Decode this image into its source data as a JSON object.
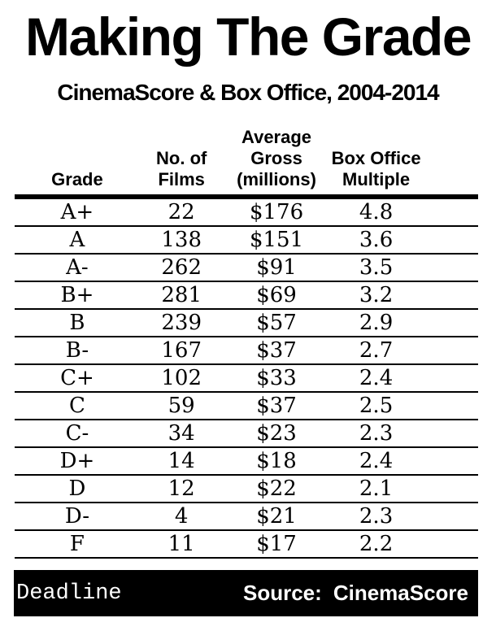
{
  "title": "Making The Grade",
  "subtitle": "CinemaScore & Box Office, 2004-2014",
  "table": {
    "header_lines": [
      [
        "Grade"
      ],
      [
        "No. of",
        "Films"
      ],
      [
        "Average",
        "Gross",
        "(millions)"
      ],
      [
        "Box Office",
        "Multiple"
      ]
    ],
    "rows": [
      [
        "A+",
        "22",
        "$176",
        "4.8"
      ],
      [
        "A",
        "138",
        "$151",
        "3.6"
      ],
      [
        "A-",
        "262",
        "$91",
        "3.5"
      ],
      [
        "B+",
        "281",
        "$69",
        "3.2"
      ],
      [
        "B",
        "239",
        "$57",
        "2.9"
      ],
      [
        "B-",
        "167",
        "$37",
        "2.7"
      ],
      [
        "C+",
        "102",
        "$33",
        "2.4"
      ],
      [
        "C",
        "59",
        "$37",
        "2.5"
      ],
      [
        "C-",
        "34",
        "$23",
        "2.3"
      ],
      [
        "D+",
        "14",
        "$18",
        "2.4"
      ],
      [
        "D",
        "12",
        "$22",
        "2.1"
      ],
      [
        "D-",
        "4",
        "$21",
        "2.3"
      ],
      [
        "F",
        "11",
        "$17",
        "2.2"
      ]
    ]
  },
  "footer": {
    "brand": "Deadline",
    "source_label": "Source:",
    "source_value": "CinemaScore"
  },
  "colors": {
    "text": "#000000",
    "background": "#ffffff",
    "bar_background": "#000000",
    "bar_text": "#ffffff"
  },
  "chart_data": {
    "type": "table",
    "title": "Making The Grade",
    "subtitle": "CinemaScore & Box Office, 2004-2014",
    "columns": [
      "Grade",
      "No. of Films",
      "Average Gross (millions)",
      "Box Office Multiple"
    ],
    "rows": [
      {
        "grade": "A+",
        "films": 22,
        "avg_gross_millions": 176,
        "box_office_multiple": 4.8
      },
      {
        "grade": "A",
        "films": 138,
        "avg_gross_millions": 151,
        "box_office_multiple": 3.6
      },
      {
        "grade": "A-",
        "films": 262,
        "avg_gross_millions": 91,
        "box_office_multiple": 3.5
      },
      {
        "grade": "B+",
        "films": 281,
        "avg_gross_millions": 69,
        "box_office_multiple": 3.2
      },
      {
        "grade": "B",
        "films": 239,
        "avg_gross_millions": 57,
        "box_office_multiple": 2.9
      },
      {
        "grade": "B-",
        "films": 167,
        "avg_gross_millions": 37,
        "box_office_multiple": 2.7
      },
      {
        "grade": "C+",
        "films": 102,
        "avg_gross_millions": 33,
        "box_office_multiple": 2.4
      },
      {
        "grade": "C",
        "films": 59,
        "avg_gross_millions": 37,
        "box_office_multiple": 2.5
      },
      {
        "grade": "C-",
        "films": 34,
        "avg_gross_millions": 23,
        "box_office_multiple": 2.3
      },
      {
        "grade": "D+",
        "films": 14,
        "avg_gross_millions": 18,
        "box_office_multiple": 2.4
      },
      {
        "grade": "D",
        "films": 12,
        "avg_gross_millions": 22,
        "box_office_multiple": 2.1
      },
      {
        "grade": "D-",
        "films": 4,
        "avg_gross_millions": 21,
        "box_office_multiple": 2.3
      },
      {
        "grade": "F",
        "films": 11,
        "avg_gross_millions": 17,
        "box_office_multiple": 2.2
      }
    ],
    "source": "CinemaScore"
  }
}
